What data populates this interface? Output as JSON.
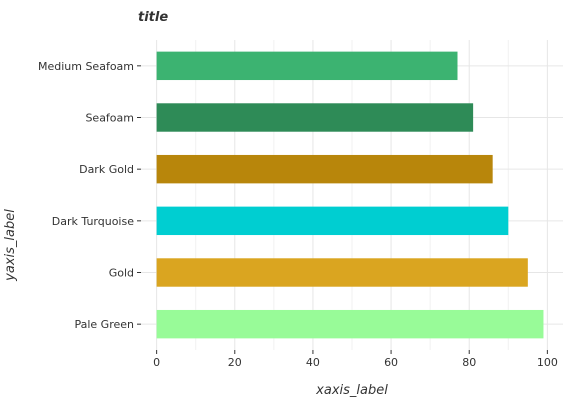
{
  "chart_data": {
    "type": "bar",
    "orientation": "horizontal",
    "title": "title",
    "xlabel": "xaxis_label",
    "ylabel": "yaxis_label",
    "categories": [
      "Pale Green",
      "Gold",
      "Dark Turquoise",
      "Dark Gold",
      "Seafoam",
      "Medium Seafoam"
    ],
    "values": [
      99,
      95,
      90,
      86,
      81,
      77
    ],
    "colors": [
      "#98fb98",
      "#daa520",
      "#00ced1",
      "#b8860b",
      "#2e8b57",
      "#3cb371"
    ],
    "xlim": [
      -4,
      104
    ],
    "xticks": [
      0,
      20,
      40,
      60,
      80,
      100
    ],
    "grid": true,
    "legend": "none"
  }
}
